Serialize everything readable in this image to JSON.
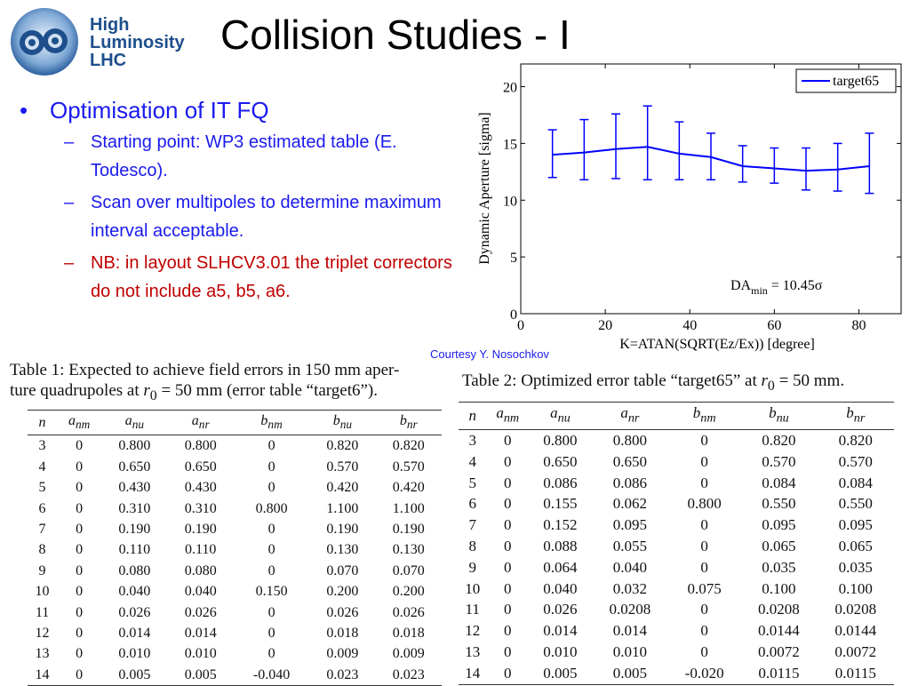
{
  "logo": {
    "line1": "High",
    "line2": "Luminosity",
    "line3": "LHC"
  },
  "title": "Collision Studies - I",
  "bullets": {
    "main": "Optimisation of IT FQ",
    "sub1": "Starting point: WP3 estimated table (E. Todesco).",
    "sub2": "Scan over multipoles to determine maximum interval acceptable.",
    "sub3": "NB: in layout SLHCV3.01 the triplet correctors do not include a5, b5, a6."
  },
  "courtesy": "Courtesy Y. Nosochkov",
  "chart_data": {
    "type": "line",
    "ylabel": "Dynamic Aperture [sigma]",
    "xlabel": "K=ATAN(SQRT(Ez/Ex)) [degree]",
    "xlim": [
      0,
      90
    ],
    "ylim": [
      0,
      22
    ],
    "xticks": [
      0,
      20,
      40,
      60,
      80
    ],
    "yticks": [
      0,
      5,
      10,
      15,
      20
    ],
    "legend": "top-right",
    "annotation": {
      "prefix": "DA",
      "sub": "min",
      "value": " = 10.45σ"
    },
    "series": [
      {
        "name": "target65",
        "color": "#0000ff",
        "x": [
          7.5,
          15,
          22.5,
          30,
          37.5,
          45,
          52.5,
          60,
          67.5,
          75,
          82.5
        ],
        "y": [
          14.0,
          14.2,
          14.5,
          14.7,
          14.1,
          13.8,
          13.0,
          12.8,
          12.6,
          12.7,
          13.0
        ],
        "ymin": [
          12.0,
          11.8,
          11.9,
          11.8,
          11.8,
          11.8,
          11.6,
          11.5,
          10.9,
          10.8,
          10.6
        ],
        "ymax": [
          16.2,
          17.1,
          17.6,
          18.3,
          16.9,
          15.9,
          14.8,
          14.6,
          14.6,
          15.0,
          15.9
        ]
      }
    ]
  },
  "table1": {
    "caption1": "Table 1:  Expected to achieve field errors in 150 mm aper-",
    "caption2a": "ture quadrupoles at ",
    "caption2b": "50 mm (error table “target6”).",
    "headers": [
      "n",
      "a",
      "a",
      "a",
      "b",
      "b",
      "b"
    ],
    "rows": [
      [
        "3",
        "0",
        "0.800",
        "0.800",
        "0",
        "0.820",
        "0.820"
      ],
      [
        "4",
        "0",
        "0.650",
        "0.650",
        "0",
        "0.570",
        "0.570"
      ],
      [
        "5",
        "0",
        "0.430",
        "0.430",
        "0",
        "0.420",
        "0.420"
      ],
      [
        "6",
        "0",
        "0.310",
        "0.310",
        "0.800",
        "1.100",
        "1.100"
      ],
      [
        "7",
        "0",
        "0.190",
        "0.190",
        "0",
        "0.190",
        "0.190"
      ],
      [
        "8",
        "0",
        "0.110",
        "0.110",
        "0",
        "0.130",
        "0.130"
      ],
      [
        "9",
        "0",
        "0.080",
        "0.080",
        "0",
        "0.070",
        "0.070"
      ],
      [
        "10",
        "0",
        "0.040",
        "0.040",
        "0.150",
        "0.200",
        "0.200"
      ],
      [
        "11",
        "0",
        "0.026",
        "0.026",
        "0",
        "0.026",
        "0.026"
      ],
      [
        "12",
        "0",
        "0.014",
        "0.014",
        "0",
        "0.018",
        "0.018"
      ],
      [
        "13",
        "0",
        "0.010",
        "0.010",
        "0",
        "0.009",
        "0.009"
      ],
      [
        "14",
        "0",
        "0.005",
        "0.005",
        "-0.040",
        "0.023",
        "0.023"
      ]
    ]
  },
  "table2": {
    "caption_a": "Table 2:  Optimized error table “target65” at ",
    "caption_b": "50 mm.",
    "headers": [
      "n",
      "a",
      "a",
      "a",
      "b",
      "b",
      "b"
    ],
    "rows": [
      [
        "3",
        "0",
        "0.800",
        "0.800",
        "0",
        "0.820",
        "0.820"
      ],
      [
        "4",
        "0",
        "0.650",
        "0.650",
        "0",
        "0.570",
        "0.570"
      ],
      [
        "5",
        "0",
        "0.086",
        "0.086",
        "0",
        "0.084",
        "0.084"
      ],
      [
        "6",
        "0",
        "0.155",
        "0.062",
        "0.800",
        "0.550",
        "0.550"
      ],
      [
        "7",
        "0",
        "0.152",
        "0.095",
        "0",
        "0.095",
        "0.095"
      ],
      [
        "8",
        "0",
        "0.088",
        "0.055",
        "0",
        "0.065",
        "0.065"
      ],
      [
        "9",
        "0",
        "0.064",
        "0.040",
        "0",
        "0.035",
        "0.035"
      ],
      [
        "10",
        "0",
        "0.040",
        "0.032",
        "0.075",
        "0.100",
        "0.100"
      ],
      [
        "11",
        "0",
        "0.026",
        "0.0208",
        "0",
        "0.0208",
        "0.0208"
      ],
      [
        "12",
        "0",
        "0.014",
        "0.014",
        "0",
        "0.0144",
        "0.0144"
      ],
      [
        "13",
        "0",
        "0.010",
        "0.010",
        "0",
        "0.0072",
        "0.0072"
      ],
      [
        "14",
        "0",
        "0.005",
        "0.005",
        "-0.020",
        "0.0115",
        "0.0115"
      ]
    ]
  },
  "subscripts": {
    "nm": "nm",
    "nu": "nu",
    "nr": "nr",
    "r": "r",
    "r_sub": "0",
    "eq": " = "
  }
}
